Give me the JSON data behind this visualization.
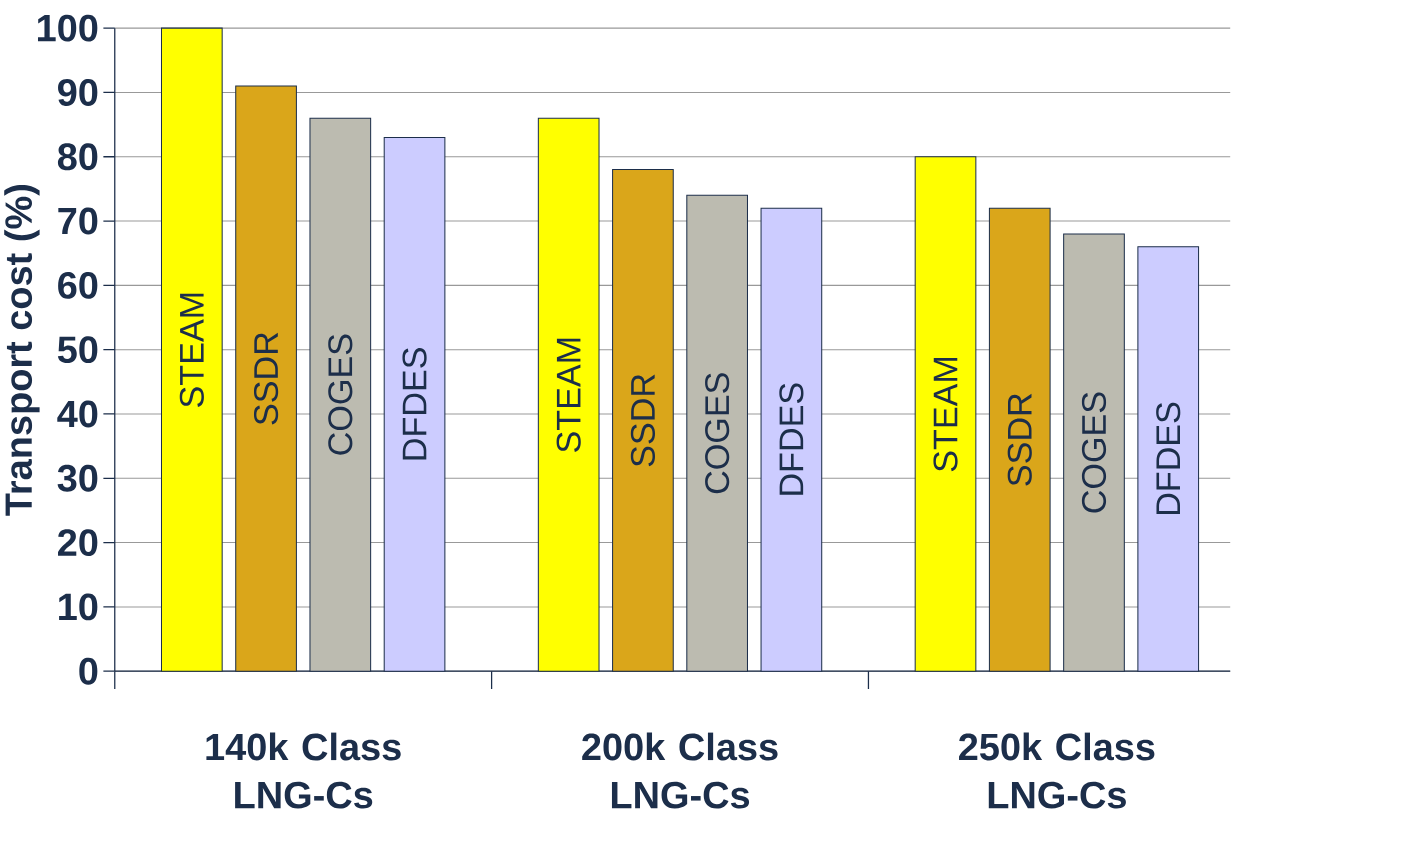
{
  "chart_data": {
    "type": "bar",
    "ylabel": "Transport cost (%)",
    "categories": [
      "140k Class LNG-Cs",
      "200k Class LNG-Cs",
      "250k Class LNG-Cs"
    ],
    "series": [
      {
        "name": "STEAM",
        "color": "#ffff00",
        "values": [
          100,
          86,
          80
        ]
      },
      {
        "name": "SSDR",
        "color": "#daa61a",
        "values": [
          91,
          78,
          72
        ]
      },
      {
        "name": "COGES",
        "color": "#bcbbb0",
        "values": [
          86,
          74,
          68
        ]
      },
      {
        "name": "DFDES",
        "color": "#ccccff",
        "values": [
          83,
          72,
          66
        ]
      }
    ],
    "ylim": [
      0,
      100
    ],
    "yticks": [
      0,
      10,
      20,
      30,
      40,
      50,
      60,
      70,
      80,
      90,
      100
    ],
    "grid": "y"
  }
}
